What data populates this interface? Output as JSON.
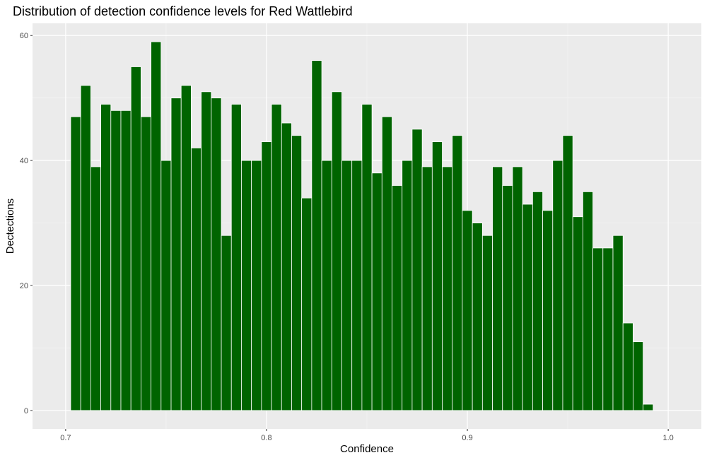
{
  "chart_data": {
    "type": "bar",
    "title": "Distribution of detection confidence levels for Red Wattlebird",
    "xlabel": "Confidence",
    "ylabel": "Dectections",
    "xlim": [
      0.6835,
      1.0165
    ],
    "ylim": [
      -2.95,
      61.95
    ],
    "x_ticks": [
      0.7,
      0.8,
      0.9,
      1.0
    ],
    "x_tick_labels": [
      "0.7",
      "0.8",
      "0.9",
      "1.0"
    ],
    "y_ticks": [
      0,
      20,
      40,
      60
    ],
    "y_tick_labels": [
      "0",
      "20",
      "40",
      "60"
    ],
    "bin_start": 0.7025,
    "bin_width": 0.005,
    "values": [
      47,
      52,
      39,
      49,
      48,
      48,
      55,
      47,
      59,
      40,
      50,
      52,
      42,
      51,
      50,
      28,
      49,
      40,
      40,
      43,
      49,
      46,
      44,
      34,
      56,
      40,
      51,
      40,
      40,
      49,
      38,
      47,
      36,
      40,
      45,
      39,
      43,
      39,
      44,
      32,
      30,
      28,
      39,
      36,
      39,
      33,
      35,
      32,
      40,
      44,
      31,
      35,
      26,
      26,
      28,
      14,
      11,
      1
    ],
    "grid": true,
    "legend": "none",
    "colors": {
      "bar_fill": "#006400",
      "bar_outline": "#ffffff",
      "panel_background": "#ebebeb",
      "grid_major": "#ffffff",
      "grid_minor": "#f5f5f5"
    }
  }
}
